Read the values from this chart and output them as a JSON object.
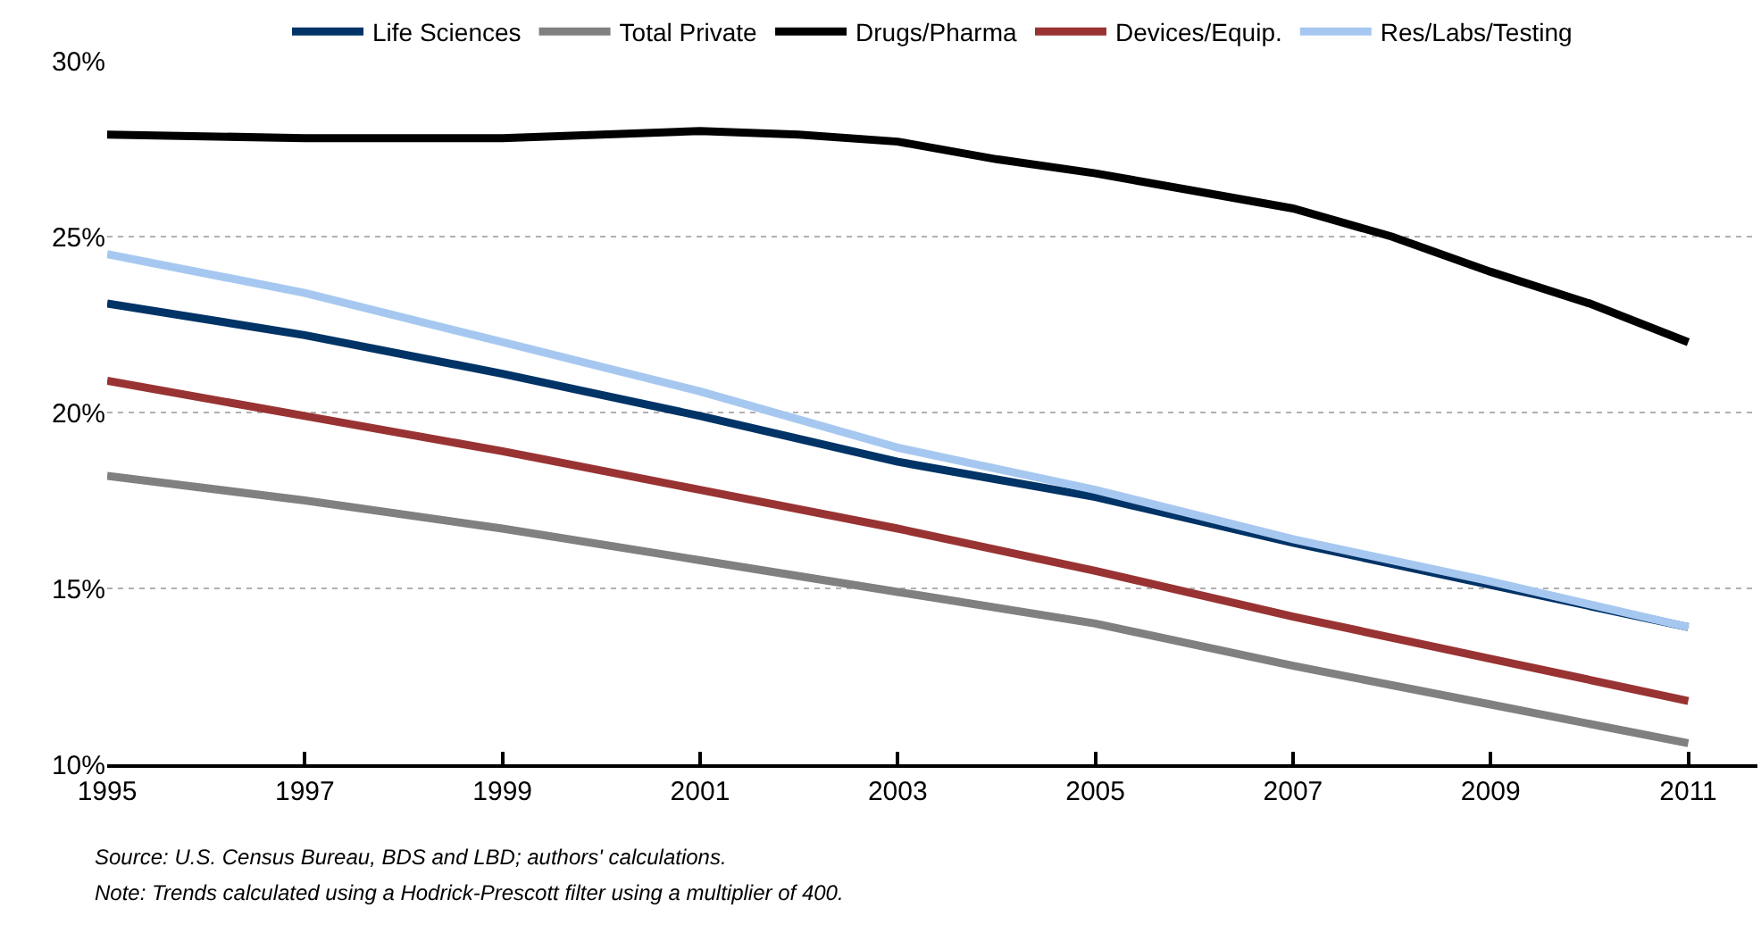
{
  "chart_data": {
    "type": "line",
    "series": [
      {
        "name": "Life Sciences",
        "color": "#003366",
        "x": [
          1995,
          1997,
          1999,
          2001,
          2003,
          2005,
          2007,
          2009,
          2011
        ],
        "values": [
          23.1,
          22.2,
          21.1,
          19.9,
          18.6,
          17.6,
          16.3,
          15.1,
          13.9
        ]
      },
      {
        "name": "Total Private",
        "color": "#808080",
        "x": [
          1995,
          1997,
          1999,
          2001,
          2003,
          2005,
          2007,
          2009,
          2011
        ],
        "values": [
          18.2,
          17.5,
          16.7,
          15.8,
          14.9,
          14.0,
          12.8,
          11.7,
          10.6
        ]
      },
      {
        "name": "Drugs/Pharma",
        "color": "#000000",
        "x": [
          1995,
          1997,
          1999,
          2001,
          2002,
          2003,
          2004,
          2005,
          2006,
          2007,
          2008,
          2009,
          2010,
          2011
        ],
        "values": [
          27.9,
          27.8,
          27.8,
          28.0,
          27.9,
          27.7,
          27.2,
          26.8,
          26.3,
          25.8,
          25.0,
          24.0,
          23.1,
          22.0
        ]
      },
      {
        "name": "Devices/Equip.",
        "color": "#993333",
        "x": [
          1995,
          1997,
          1999,
          2001,
          2003,
          2005,
          2007,
          2009,
          2011
        ],
        "values": [
          20.9,
          19.9,
          18.9,
          17.8,
          16.7,
          15.5,
          14.2,
          13.0,
          11.8
        ]
      },
      {
        "name": "Res/Labs/Testing",
        "color": "#a6c8f0",
        "x": [
          1995,
          1997,
          1999,
          2001,
          2003,
          2005,
          2007,
          2009,
          2011
        ],
        "values": [
          24.5,
          23.4,
          22.0,
          20.6,
          19.0,
          17.8,
          16.4,
          15.2,
          13.9
        ]
      }
    ],
    "xlim": [
      1995,
      2011.7
    ],
    "xticks": [
      1995,
      1997,
      1999,
      2001,
      2003,
      2005,
      2007,
      2009,
      2011
    ],
    "ylim": [
      10,
      30
    ],
    "yticks": [
      {
        "value": 10,
        "label": "10%"
      },
      {
        "value": 15,
        "label": "15%"
      },
      {
        "value": 20,
        "label": "20%"
      },
      {
        "value": 25,
        "label": "25%"
      },
      {
        "value": 30,
        "label": "30%"
      }
    ],
    "grid": "y",
    "legend": "top",
    "marker": "none",
    "line_style": "solid",
    "annotations": [
      "Source: U.S. Census Bureau, BDS and LBD; authors' calculations.",
      "Note: Trends calculated using a Hodrick-Prescott filter using a multiplier of 400."
    ]
  }
}
